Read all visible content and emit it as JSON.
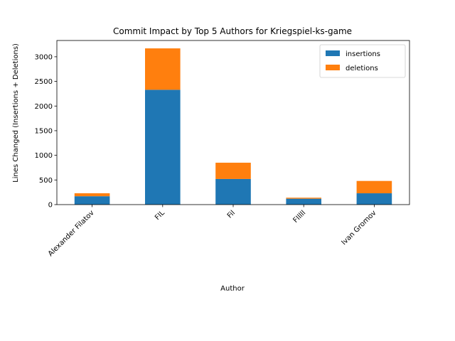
{
  "chart_data": {
    "type": "bar",
    "stacked": true,
    "title": "Commit Impact by Top 5 Authors for Kriegspiel-ks-game",
    "xlabel": "Author",
    "ylabel": "Lines Changed (Insertions + Deletions)",
    "categories": [
      "Alexander Filatov",
      "FIL",
      "Fil",
      "FIllll",
      "Ivan Gromov"
    ],
    "series": [
      {
        "name": "insertions",
        "color": "#1f77b4",
        "values": [
          170,
          2330,
          520,
          120,
          230
        ]
      },
      {
        "name": "deletions",
        "color": "#ff7f0e",
        "values": [
          60,
          840,
          330,
          20,
          250
        ]
      }
    ],
    "ylim": [
      0,
      3330
    ],
    "yticks": [
      0,
      500,
      1000,
      1500,
      2000,
      2500,
      3000
    ],
    "grid": false,
    "legend_position": "top-right"
  }
}
